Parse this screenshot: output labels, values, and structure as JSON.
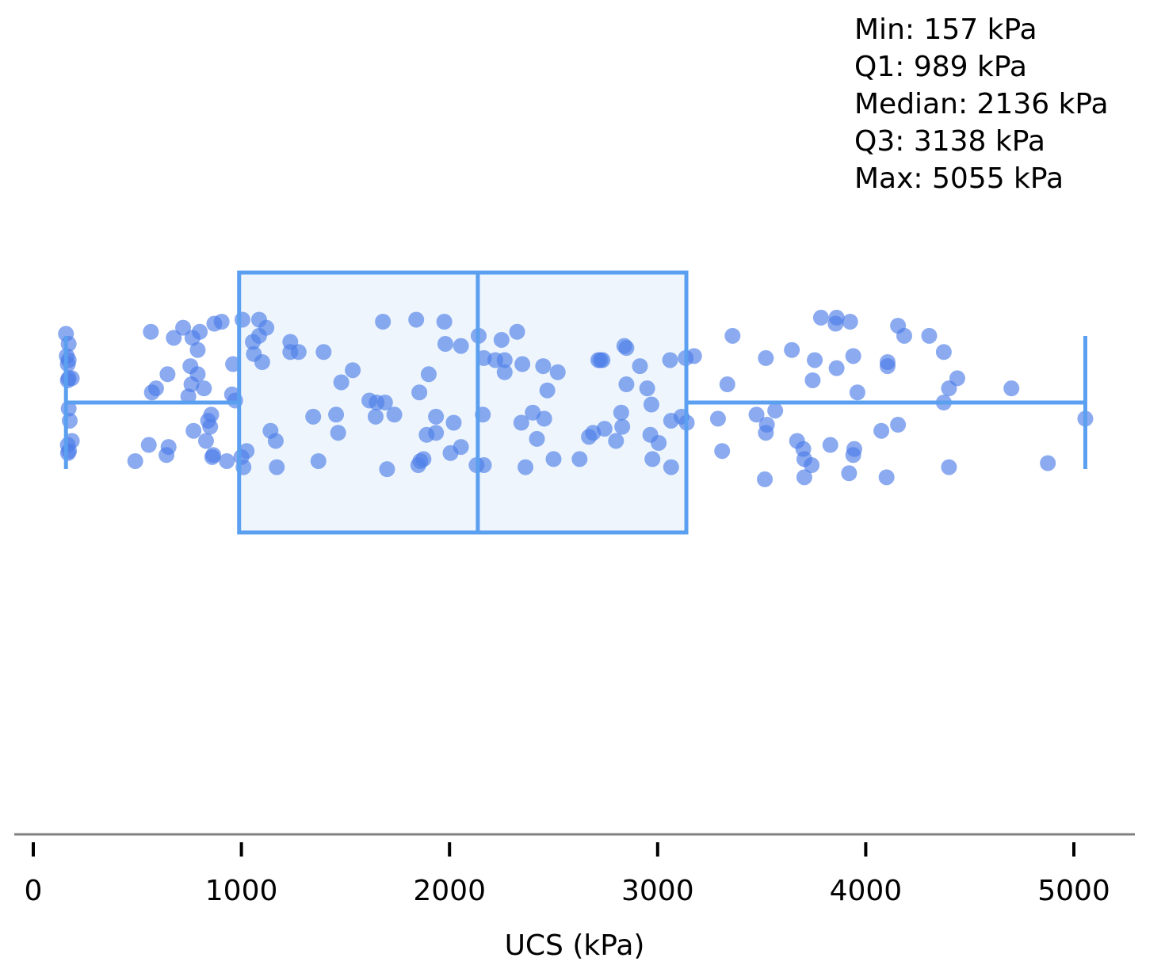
{
  "chart_data": {
    "type": "box",
    "orientation": "horizontal",
    "xlabel": "UCS (kPa)",
    "xlim": [
      -150,
      5300
    ],
    "xticks": [
      0,
      1000,
      2000,
      3000,
      4000,
      5000
    ],
    "grid": false,
    "color": "#5b9ff0",
    "point_color": "#4d7de8",
    "summary": {
      "min": 157,
      "q1": 989,
      "median": 2136,
      "q3": 3138,
      "max": 5055
    },
    "stats_lines": [
      "Min: 157 kPa",
      "Q1: 989 kPa",
      "Median: 2136 kPa",
      "Q3: 3138 kPa",
      "Max: 5055 kPa"
    ],
    "points": [
      [
        157,
        -0.34
      ],
      [
        170,
        -0.29
      ],
      [
        166,
        -0.19
      ],
      [
        170,
        -0.21
      ],
      [
        161,
        -0.23
      ],
      [
        170,
        -0.12
      ],
      [
        166,
        -0.11
      ],
      [
        170,
        0.03
      ],
      [
        185,
        -0.12
      ],
      [
        175,
        0.09
      ],
      [
        166,
        0.21
      ],
      [
        167,
        0.25
      ],
      [
        172,
        0.24
      ],
      [
        185,
        0.19
      ],
      [
        565,
        -0.35
      ],
      [
        675,
        -0.32
      ],
      [
        720,
        -0.37
      ],
      [
        765,
        -0.32
      ],
      [
        800,
        -0.35
      ],
      [
        790,
        -0.26
      ],
      [
        755,
        -0.18
      ],
      [
        790,
        -0.14
      ],
      [
        645,
        -0.14
      ],
      [
        760,
        -0.09
      ],
      [
        820,
        -0.07
      ],
      [
        590,
        -0.07
      ],
      [
        570,
        -0.05
      ],
      [
        745,
        -0.03
      ],
      [
        855,
        0.06
      ],
      [
        840,
        0.09
      ],
      [
        850,
        0.12
      ],
      [
        770,
        0.14
      ],
      [
        830,
        0.19
      ],
      [
        555,
        0.21
      ],
      [
        650,
        0.22
      ],
      [
        640,
        0.26
      ],
      [
        490,
        0.29
      ],
      [
        860,
        0.27
      ],
      [
        865,
        0.26
      ],
      [
        930,
        0.29
      ],
      [
        905,
        -0.4
      ],
      [
        870,
        -0.39
      ],
      [
        960,
        -0.19
      ],
      [
        955,
        -0.04
      ],
      [
        970,
        -0.01
      ],
      [
        1005,
        -0.41
      ],
      [
        1085,
        -0.41
      ],
      [
        1120,
        -0.37
      ],
      [
        1085,
        -0.33
      ],
      [
        1055,
        -0.3
      ],
      [
        1060,
        -0.24
      ],
      [
        1100,
        -0.2
      ],
      [
        1235,
        -0.3
      ],
      [
        1235,
        -0.25
      ],
      [
        1275,
        -0.25
      ],
      [
        1395,
        -0.25
      ],
      [
        1535,
        -0.16
      ],
      [
        1480,
        -0.1
      ],
      [
        1615,
        -0.01
      ],
      [
        1650,
        0.0
      ],
      [
        1690,
        0.0
      ],
      [
        1645,
        0.07
      ],
      [
        1735,
        0.06
      ],
      [
        1345,
        0.07
      ],
      [
        1455,
        0.06
      ],
      [
        1140,
        0.14
      ],
      [
        1165,
        0.19
      ],
      [
        1465,
        0.15
      ],
      [
        1025,
        0.24
      ],
      [
        1000,
        0.27
      ],
      [
        1010,
        0.32
      ],
      [
        1170,
        0.32
      ],
      [
        1370,
        0.29
      ],
      [
        1700,
        0.33
      ],
      [
        1680,
        -0.4
      ],
      [
        1840,
        -0.41
      ],
      [
        1975,
        -0.4
      ],
      [
        1980,
        -0.29
      ],
      [
        2055,
        -0.28
      ],
      [
        2140,
        -0.33
      ],
      [
        2165,
        -0.22
      ],
      [
        2250,
        -0.31
      ],
      [
        2325,
        -0.35
      ],
      [
        2220,
        -0.21
      ],
      [
        2265,
        -0.21
      ],
      [
        2350,
        -0.19
      ],
      [
        2265,
        -0.15
      ],
      [
        1900,
        -0.14
      ],
      [
        1855,
        -0.05
      ],
      [
        2450,
        -0.18
      ],
      [
        2520,
        -0.15
      ],
      [
        2470,
        -0.06
      ],
      [
        2400,
        0.05
      ],
      [
        1935,
        0.07
      ],
      [
        2160,
        0.06
      ],
      [
        2455,
        0.08
      ],
      [
        2345,
        0.1
      ],
      [
        2020,
        0.1
      ],
      [
        1935,
        0.15
      ],
      [
        1890,
        0.16
      ],
      [
        2420,
        0.18
      ],
      [
        2055,
        0.22
      ],
      [
        2005,
        0.25
      ],
      [
        1875,
        0.28
      ],
      [
        1850,
        0.31
      ],
      [
        1860,
        0.29
      ],
      [
        2130,
        0.31
      ],
      [
        2165,
        0.31
      ],
      [
        2365,
        0.32
      ],
      [
        2500,
        0.28
      ],
      [
        2625,
        0.28
      ],
      [
        2715,
        -0.21
      ],
      [
        2735,
        -0.21
      ],
      [
        2725,
        -0.21
      ],
      [
        2840,
        -0.28
      ],
      [
        2850,
        -0.27
      ],
      [
        2915,
        -0.18
      ],
      [
        2850,
        -0.09
      ],
      [
        2950,
        -0.07
      ],
      [
        2825,
        0.05
      ],
      [
        2970,
        0.01
      ],
      [
        2690,
        0.15
      ],
      [
        2745,
        0.13
      ],
      [
        2830,
        0.12
      ],
      [
        2670,
        0.17
      ],
      [
        2800,
        0.19
      ],
      [
        2965,
        0.16
      ],
      [
        3005,
        0.2
      ],
      [
        2975,
        0.28
      ],
      [
        3065,
        0.32
      ],
      [
        3060,
        -0.21
      ],
      [
        3115,
        0.07
      ],
      [
        3140,
        0.1
      ],
      [
        3065,
        0.09
      ],
      [
        3135,
        -0.22
      ],
      [
        3175,
        -0.23
      ],
      [
        3360,
        -0.33
      ],
      [
        3520,
        -0.22
      ],
      [
        3645,
        -0.26
      ],
      [
        3755,
        -0.21
      ],
      [
        3745,
        -0.11
      ],
      [
        3860,
        -0.17
      ],
      [
        3940,
        -0.23
      ],
      [
        3785,
        -0.42
      ],
      [
        3860,
        -0.42
      ],
      [
        3855,
        -0.39
      ],
      [
        3925,
        -0.4
      ],
      [
        4155,
        -0.38
      ],
      [
        4185,
        -0.33
      ],
      [
        4305,
        -0.33
      ],
      [
        4375,
        -0.25
      ],
      [
        4105,
        -0.18
      ],
      [
        4105,
        -0.2
      ],
      [
        4440,
        -0.12
      ],
      [
        4400,
        -0.07
      ],
      [
        4375,
        0.0
      ],
      [
        4700,
        -0.07
      ],
      [
        3960,
        -0.05
      ],
      [
        3335,
        -0.09
      ],
      [
        3565,
        0.04
      ],
      [
        3475,
        0.06
      ],
      [
        3525,
        0.11
      ],
      [
        3290,
        0.08
      ],
      [
        3520,
        0.15
      ],
      [
        3670,
        0.19
      ],
      [
        3700,
        0.23
      ],
      [
        3830,
        0.21
      ],
      [
        3945,
        0.23
      ],
      [
        4075,
        0.14
      ],
      [
        4155,
        0.11
      ],
      [
        3310,
        0.24
      ],
      [
        3705,
        0.28
      ],
      [
        3740,
        0.31
      ],
      [
        3940,
        0.26
      ],
      [
        3920,
        0.35
      ],
      [
        3705,
        0.37
      ],
      [
        3515,
        0.38
      ],
      [
        4100,
        0.37
      ],
      [
        4400,
        0.32
      ],
      [
        4875,
        0.3
      ],
      [
        5055,
        0.08
      ]
    ]
  }
}
